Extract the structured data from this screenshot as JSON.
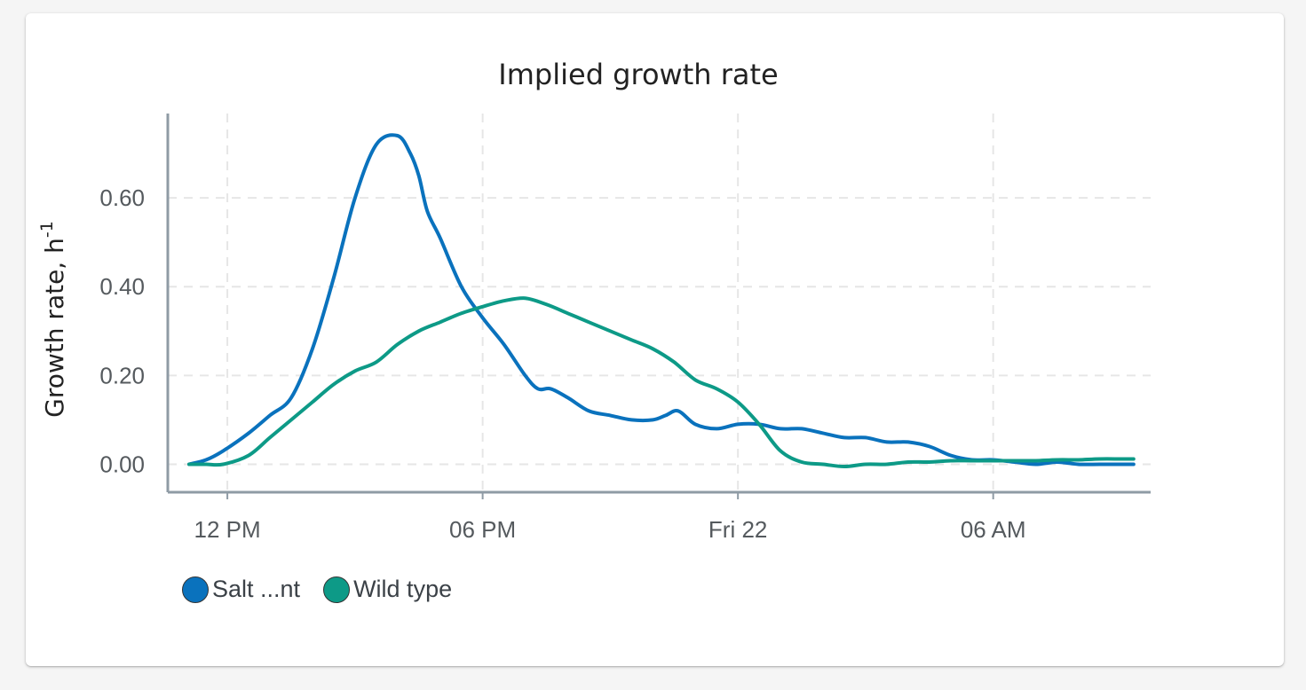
{
  "chart_data": {
    "type": "line",
    "title": "Implied growth rate",
    "xlabel": "",
    "ylabel": "Growth rate, h",
    "ylabel_sup": "-1",
    "x_tick_labels": [
      "12 PM",
      "06 PM",
      "Fri 22",
      "06 AM"
    ],
    "x_tick_hours": [
      12,
      18,
      24,
      30
    ],
    "x_range_hours": [
      10.6,
      33.7
    ],
    "y_tick_labels": [
      "0.00",
      "0.20",
      "0.40",
      "0.60"
    ],
    "y_ticks": [
      0,
      0.2,
      0.4,
      0.6
    ],
    "ylim": [
      -0.063,
      0.79
    ],
    "grid": true,
    "legend_position": "bottom-left",
    "series": [
      {
        "name": "Salt ...nt",
        "color": "#0a72bd",
        "x_hours": [
          11.1,
          11.5,
          11.9,
          12.5,
          13.0,
          13.5,
          14.0,
          14.5,
          15.0,
          15.5,
          16.0,
          16.3,
          16.5,
          16.7,
          17.0,
          17.5,
          18.0,
          18.5,
          19.0,
          19.3,
          19.6,
          20.0,
          20.5,
          21.0,
          21.5,
          22.0,
          22.3,
          22.6,
          23.0,
          23.5,
          24.0,
          24.5,
          25.0,
          25.5,
          26.0,
          26.5,
          27.0,
          27.5,
          28.0,
          28.5,
          29.0,
          29.5,
          30.0,
          30.5,
          31.0,
          31.5,
          32.0,
          32.5,
          33.0,
          33.3
        ],
        "values": [
          0.0,
          0.01,
          0.03,
          0.07,
          0.11,
          0.15,
          0.26,
          0.42,
          0.6,
          0.72,
          0.74,
          0.7,
          0.65,
          0.57,
          0.51,
          0.4,
          0.33,
          0.27,
          0.2,
          0.17,
          0.17,
          0.15,
          0.12,
          0.11,
          0.1,
          0.1,
          0.11,
          0.12,
          0.09,
          0.08,
          0.09,
          0.09,
          0.08,
          0.08,
          0.07,
          0.06,
          0.06,
          0.05,
          0.05,
          0.04,
          0.02,
          0.01,
          0.01,
          0.005,
          0.0,
          0.005,
          0.0,
          0.0,
          0.0,
          0.0
        ]
      },
      {
        "name": "Wild type",
        "color": "#0d9a87",
        "x_hours": [
          11.1,
          11.5,
          11.9,
          12.5,
          13.0,
          13.5,
          14.0,
          14.5,
          15.0,
          15.5,
          16.0,
          16.5,
          17.0,
          17.5,
          18.0,
          18.5,
          19.0,
          19.5,
          20.0,
          20.5,
          21.0,
          21.5,
          22.0,
          22.5,
          23.0,
          23.5,
          24.0,
          24.5,
          25.0,
          25.5,
          26.0,
          26.5,
          27.0,
          27.5,
          28.0,
          28.5,
          29.0,
          29.5,
          30.0,
          30.5,
          31.0,
          31.5,
          32.0,
          32.5,
          33.0,
          33.3
        ],
        "values": [
          0.0,
          0.0,
          0.0,
          0.02,
          0.06,
          0.1,
          0.14,
          0.18,
          0.21,
          0.23,
          0.27,
          0.3,
          0.32,
          0.34,
          0.355,
          0.368,
          0.374,
          0.36,
          0.34,
          0.32,
          0.3,
          0.28,
          0.26,
          0.23,
          0.19,
          0.17,
          0.14,
          0.09,
          0.03,
          0.005,
          0.0,
          -0.005,
          0.0,
          0.0,
          0.005,
          0.005,
          0.008,
          0.008,
          0.008,
          0.008,
          0.008,
          0.01,
          0.01,
          0.012,
          0.012,
          0.012
        ]
      }
    ]
  }
}
